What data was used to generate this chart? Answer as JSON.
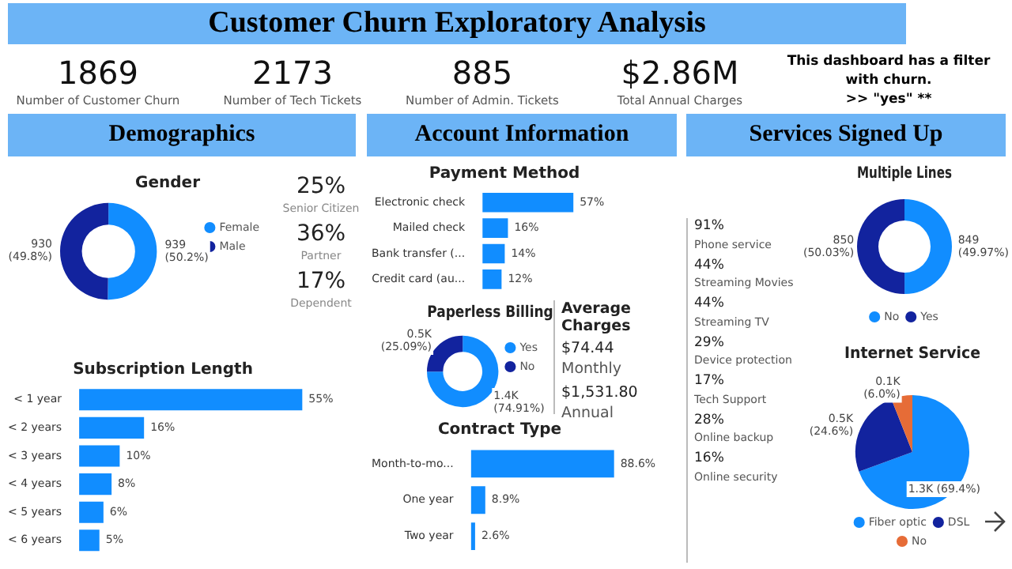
{
  "chart_data": [
    {
      "type": "other",
      "title": "Customer Churn Exploratory Analysis",
      "annotations": [
        "1869",
        "Number of Customer Churn",
        "2173",
        "Number of Tech Tickets",
        "885",
        "Number of Admin. Tickets",
        "$2.86M",
        "Total Annual Charges",
        "This dashboard has a filter with churn.",
        ">> \"yes\" **",
        "Demographics",
        "Account Information",
        "Services Signed Up"
      ]
    },
    {
      "type": "donut",
      "title": "Gender",
      "categories": [
        "Female",
        "Male"
      ],
      "values": [
        939,
        930
      ],
      "colors": [
        "#118dff",
        "#12239e"
      ],
      "value_labels": [
        "939\n(50.2%)",
        "930\n(49.8%)"
      ],
      "legend": "right"
    },
    {
      "type": "other",
      "annotations": [
        "25%",
        "Senior Citizen",
        "36%",
        "Partner",
        "17%",
        "Dependent"
      ]
    },
    {
      "type": "bar",
      "title": "Subscription Length",
      "orientation": "horizontal",
      "categories": [
        "< 1 year",
        "< 2 years",
        "< 3 years",
        "< 4 years",
        "< 5 years",
        "< 6 years"
      ],
      "values": [
        55,
        16,
        10,
        8,
        6,
        5
      ],
      "color": "#118dff",
      "value_labels": [
        "55%",
        "16%",
        "10%",
        "8%",
        "6%",
        "5%"
      ],
      "tick_labels": "y"
    },
    {
      "type": "bar",
      "title": "Payment Method",
      "orientation": "horizontal",
      "categories": [
        "Electronic check",
        "Mailed check",
        "Bank transfer (...",
        "Credit card (au..."
      ],
      "values": [
        57,
        16,
        14,
        12
      ],
      "color": "#118dff",
      "value_labels": [
        "57%",
        "16%",
        "14%",
        "12%"
      ],
      "tick_labels": "y"
    },
    {
      "type": "donut",
      "title": "Paperless Billing",
      "categories": [
        "Yes",
        "No"
      ],
      "values": [
        74.91,
        25.09
      ],
      "colors": [
        "#118dff",
        "#12239e"
      ],
      "value_labels": [
        "1.4K\n(74.91%)",
        "0.5K\n(25.09%)"
      ],
      "legend": "right"
    },
    {
      "type": "other",
      "title": "Average Charges",
      "annotations": [
        "$74.44",
        "Monthly",
        "$1,531.80",
        "Annual"
      ]
    },
    {
      "type": "bar",
      "title": "Contract Type",
      "orientation": "horizontal",
      "categories": [
        "Month-to-mo...",
        "One year",
        "Two year"
      ],
      "values": [
        88.6,
        8.9,
        2.6
      ],
      "color": "#118dff",
      "value_labels": [
        "88.6%",
        "8.9%",
        "2.6%"
      ],
      "tick_labels": "y"
    },
    {
      "type": "other",
      "annotations": [
        "91%",
        "Phone service",
        "44%",
        "Streaming Movies",
        "44%",
        "Streaming TV",
        "29%",
        "Device protection",
        "17%",
        "Tech Support",
        "28%",
        "Online backup",
        "16%",
        "Online security"
      ]
    },
    {
      "type": "donut",
      "title": "Multiple Lines",
      "categories": [
        "No",
        "Yes"
      ],
      "values": [
        849,
        850
      ],
      "colors": [
        "#118dff",
        "#12239e"
      ],
      "value_labels": [
        "849\n(49.97%)",
        "850\n(50.03%)"
      ],
      "legend": "bottom"
    },
    {
      "type": "pie",
      "title": "Internet Service",
      "categories": [
        "Fiber optic",
        "DSL",
        "No"
      ],
      "values": [
        69.4,
        24.6,
        6.0
      ],
      "colors": [
        "#118dff",
        "#12239e",
        "#e66c37"
      ],
      "value_labels": [
        "1.3K (69.4%)",
        "0.5K\n(24.6%)",
        "0.1K\n(6.0%)"
      ],
      "legend": "bottom"
    }
  ]
}
